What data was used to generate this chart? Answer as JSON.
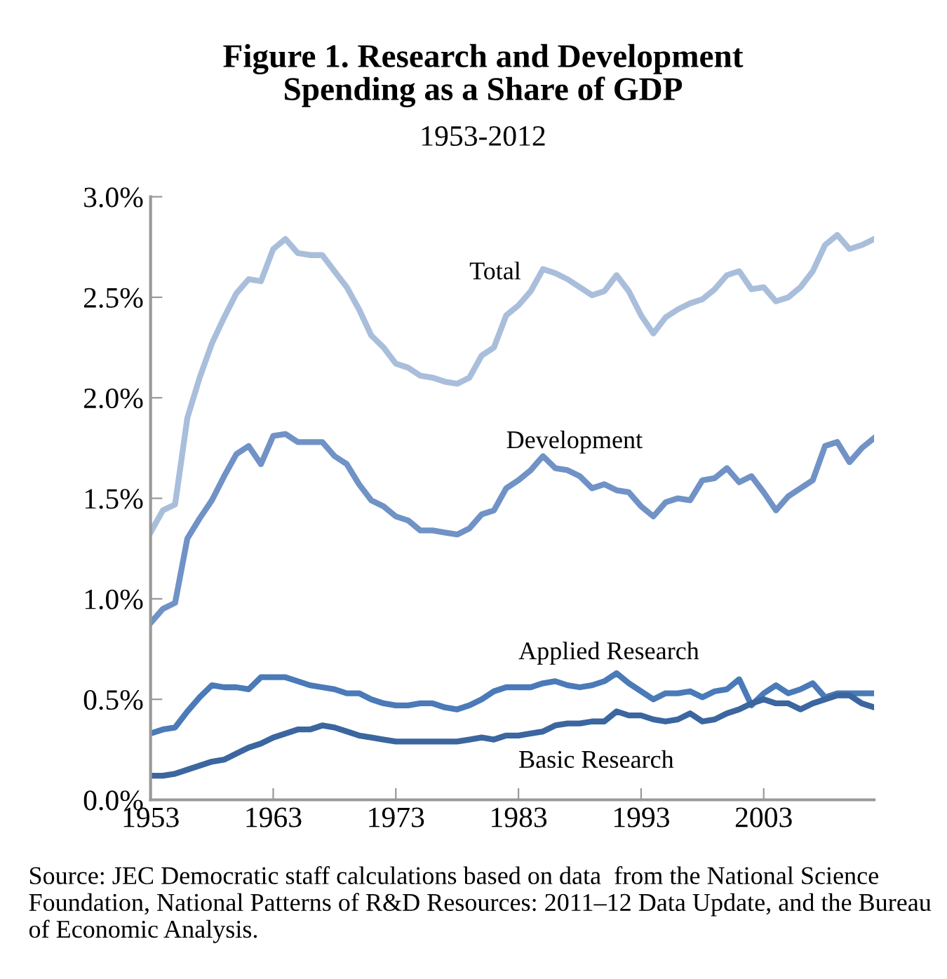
{
  "chart_data": {
    "type": "line",
    "title": "Figure 1. Research and Development\nSpending as a Share of GDP",
    "subtitle": "1953-2012",
    "x": [
      1953,
      1954,
      1955,
      1956,
      1957,
      1958,
      1959,
      1960,
      1961,
      1962,
      1963,
      1964,
      1965,
      1966,
      1967,
      1968,
      1969,
      1970,
      1971,
      1972,
      1973,
      1974,
      1975,
      1976,
      1977,
      1978,
      1979,
      1980,
      1981,
      1982,
      1983,
      1984,
      1985,
      1986,
      1987,
      1988,
      1989,
      1990,
      1991,
      1992,
      1993,
      1994,
      1995,
      1996,
      1997,
      1998,
      1999,
      2000,
      2001,
      2002,
      2003,
      2004,
      2005,
      2006,
      2007,
      2008,
      2009,
      2010,
      2011,
      2012
    ],
    "series": [
      {
        "name": "Total",
        "color": "#a9bedb",
        "values": [
          1.33,
          1.44,
          1.47,
          1.9,
          2.1,
          2.27,
          2.4,
          2.52,
          2.59,
          2.58,
          2.74,
          2.79,
          2.72,
          2.71,
          2.71,
          2.63,
          2.55,
          2.44,
          2.31,
          2.25,
          2.17,
          2.15,
          2.11,
          2.1,
          2.08,
          2.07,
          2.1,
          2.21,
          2.25,
          2.41,
          2.46,
          2.53,
          2.64,
          2.62,
          2.59,
          2.55,
          2.51,
          2.53,
          2.61,
          2.53,
          2.41,
          2.32,
          2.4,
          2.44,
          2.47,
          2.49,
          2.54,
          2.61,
          2.63,
          2.54,
          2.55,
          2.48,
          2.5,
          2.55,
          2.63,
          2.76,
          2.81,
          2.74,
          2.76,
          2.79
        ]
      },
      {
        "name": "Development",
        "color": "#7092c6",
        "values": [
          0.88,
          0.95,
          0.98,
          1.3,
          1.4,
          1.49,
          1.61,
          1.72,
          1.76,
          1.67,
          1.81,
          1.82,
          1.78,
          1.78,
          1.78,
          1.71,
          1.67,
          1.57,
          1.49,
          1.46,
          1.41,
          1.39,
          1.34,
          1.34,
          1.33,
          1.32,
          1.35,
          1.42,
          1.44,
          1.55,
          1.59,
          1.64,
          1.71,
          1.65,
          1.64,
          1.61,
          1.55,
          1.57,
          1.54,
          1.53,
          1.46,
          1.41,
          1.48,
          1.5,
          1.49,
          1.59,
          1.6,
          1.65,
          1.58,
          1.61,
          1.53,
          1.44,
          1.51,
          1.55,
          1.59,
          1.76,
          1.78,
          1.68,
          1.75,
          1.8
        ]
      },
      {
        "name": "Applied Research",
        "color": "#4a7ab8",
        "values": [
          0.33,
          0.35,
          0.36,
          0.44,
          0.51,
          0.57,
          0.56,
          0.56,
          0.55,
          0.61,
          0.61,
          0.61,
          0.59,
          0.57,
          0.56,
          0.55,
          0.53,
          0.53,
          0.5,
          0.48,
          0.47,
          0.47,
          0.48,
          0.48,
          0.46,
          0.45,
          0.47,
          0.5,
          0.54,
          0.56,
          0.56,
          0.56,
          0.58,
          0.59,
          0.57,
          0.56,
          0.57,
          0.59,
          0.63,
          0.58,
          0.54,
          0.5,
          0.53,
          0.53,
          0.54,
          0.51,
          0.54,
          0.55,
          0.6,
          0.47,
          0.53,
          0.57,
          0.53,
          0.55,
          0.58,
          0.51,
          0.53,
          0.53,
          0.53,
          0.53
        ]
      },
      {
        "name": "Basic Research",
        "color": "#3b669f",
        "values": [
          0.12,
          0.12,
          0.13,
          0.15,
          0.17,
          0.19,
          0.2,
          0.23,
          0.26,
          0.28,
          0.31,
          0.33,
          0.35,
          0.35,
          0.37,
          0.36,
          0.34,
          0.32,
          0.31,
          0.3,
          0.29,
          0.29,
          0.29,
          0.29,
          0.29,
          0.29,
          0.3,
          0.31,
          0.3,
          0.32,
          0.32,
          0.33,
          0.34,
          0.37,
          0.38,
          0.38,
          0.39,
          0.39,
          0.44,
          0.42,
          0.42,
          0.4,
          0.39,
          0.4,
          0.43,
          0.39,
          0.4,
          0.43,
          0.45,
          0.48,
          0.5,
          0.48,
          0.48,
          0.45,
          0.48,
          0.5,
          0.52,
          0.52,
          0.48,
          0.46
        ]
      }
    ],
    "xlim": [
      1953,
      2012
    ],
    "xticks": [
      1953,
      1963,
      1973,
      1983,
      1993,
      2003
    ],
    "ylim": [
      0,
      3
    ],
    "yticks": [
      {
        "value": 0,
        "label": "0.0%"
      },
      {
        "value": 0.5,
        "label": "0.5%"
      },
      {
        "value": 1,
        "label": "1.0%"
      },
      {
        "value": 1.5,
        "label": "1.5%"
      },
      {
        "value": 2,
        "label": "2.0%"
      },
      {
        "value": 2.5,
        "label": "2.5%"
      },
      {
        "value": 3,
        "label": "3.0%"
      }
    ],
    "grid": false,
    "legend": false,
    "marker": "none",
    "line_style": "solid",
    "annotations": [
      "Source: JEC Democratic staff calculations based on data  from the National Science Foundation, National Patterns of R&D Resources: 2011–12 Data Update, and the Bureau of Economic Analysis."
    ]
  }
}
